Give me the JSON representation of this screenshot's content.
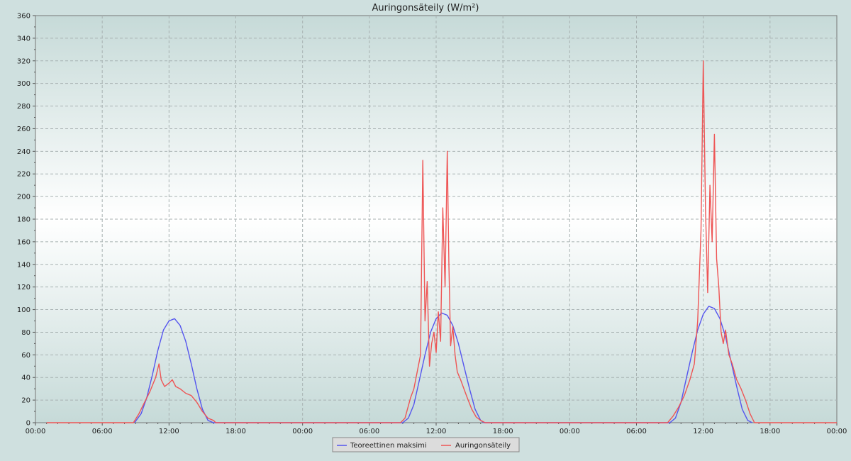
{
  "chart_data": {
    "type": "line",
    "title": "Auringonsäteily (W/m²)",
    "xlabel": "",
    "ylabel": "",
    "ylim": [
      0,
      360
    ],
    "y_ticks": [
      0,
      20,
      40,
      60,
      80,
      100,
      120,
      140,
      160,
      180,
      200,
      220,
      240,
      260,
      280,
      300,
      320,
      340,
      360
    ],
    "x_ticks": [
      "00:00",
      "06:00",
      "12:00",
      "18:00",
      "00:00",
      "06:00",
      "12:00",
      "18:00",
      "00:00",
      "06:00",
      "12:00",
      "18:00",
      "00:00"
    ],
    "x_unit": "hours",
    "x_range": [
      0,
      72
    ],
    "data_span": [
      1,
      72
    ],
    "grid": true,
    "legend_position": "bottom-center",
    "colors": {
      "theoretical": "#5555ee",
      "measured": "#ee5555"
    },
    "series": [
      {
        "name": "Teoreettinen maksimi",
        "color": "#5555ee",
        "x": [
          8.9,
          9.5,
          10.0,
          10.5,
          11.0,
          11.5,
          12.0,
          12.5,
          13.0,
          13.5,
          14.0,
          14.5,
          15.0,
          15.5,
          16.0,
          33.0,
          33.5,
          34.0,
          34.5,
          35.0,
          35.5,
          36.0,
          36.5,
          37.0,
          37.5,
          38.0,
          38.5,
          39.0,
          39.5,
          40.0,
          40.3,
          57.0,
          57.5,
          58.0,
          58.5,
          59.0,
          59.5,
          60.0,
          60.5,
          61.0,
          61.5,
          62.0,
          62.5,
          63.0,
          63.5,
          64.0,
          64.4
        ],
        "values": [
          0,
          8,
          22,
          42,
          64,
          82,
          90,
          92,
          86,
          72,
          52,
          30,
          12,
          2,
          0,
          0,
          4,
          16,
          38,
          60,
          80,
          92,
          97,
          95,
          86,
          70,
          50,
          30,
          12,
          2,
          0,
          0,
          4,
          18,
          40,
          62,
          82,
          96,
          103,
          101,
          92,
          76,
          54,
          32,
          12,
          2,
          0
        ]
      },
      {
        "name": "Auringonsäteily",
        "color": "#ee5555",
        "x": [
          1,
          8.8,
          9.3,
          9.8,
          10.3,
          10.8,
          11.1,
          11.3,
          11.6,
          12.0,
          12.3,
          12.6,
          13.0,
          13.5,
          14.0,
          14.5,
          15.0,
          15.5,
          16.0,
          16.2,
          32.8,
          33.2,
          33.7,
          34.0,
          34.3,
          34.6,
          34.8,
          35.0,
          35.2,
          35.4,
          35.6,
          35.8,
          36.0,
          36.2,
          36.4,
          36.6,
          36.8,
          37.0,
          37.15,
          37.3,
          37.5,
          37.7,
          37.9,
          38.2,
          38.5,
          38.8,
          39.2,
          39.6,
          40.0,
          40.4,
          56.8,
          57.3,
          57.8,
          58.3,
          58.8,
          59.2,
          59.5,
          59.8,
          60.0,
          60.2,
          60.4,
          60.6,
          60.8,
          61.0,
          61.2,
          61.4,
          61.6,
          61.8,
          62.0,
          62.3,
          62.6,
          63.0,
          63.4,
          63.8,
          64.2,
          64.6,
          72
        ],
        "values": [
          0,
          0,
          8,
          18,
          28,
          40,
          52,
          38,
          32,
          35,
          38,
          32,
          30,
          26,
          24,
          18,
          10,
          4,
          2,
          0,
          0,
          4,
          22,
          30,
          45,
          60,
          232,
          90,
          125,
          50,
          70,
          80,
          62,
          98,
          72,
          190,
          120,
          240,
          140,
          68,
          85,
          60,
          45,
          38,
          30,
          22,
          12,
          5,
          2,
          0,
          0,
          6,
          14,
          24,
          38,
          52,
          90,
          170,
          320,
          190,
          115,
          210,
          160,
          255,
          145,
          120,
          80,
          70,
          82,
          60,
          52,
          38,
          30,
          20,
          8,
          0,
          0
        ]
      }
    ]
  }
}
